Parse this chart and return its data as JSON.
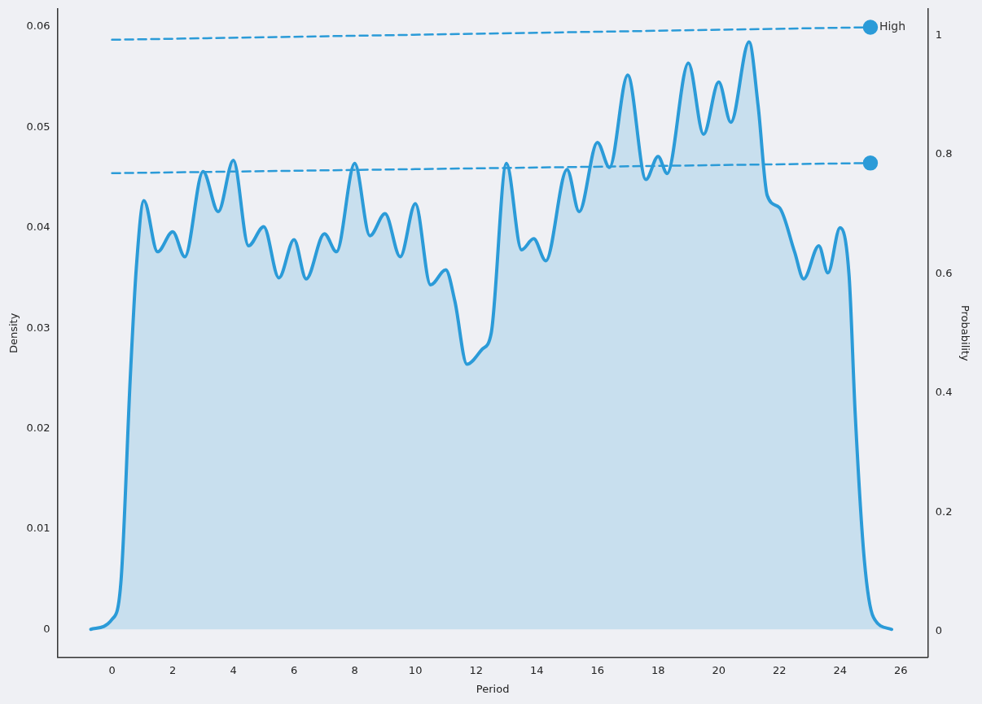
{
  "chart_data": {
    "type": "area",
    "xlabel": "Period",
    "ylabel": "Density",
    "y2label": "Probability",
    "xlim": [
      -1.8,
      26.9
    ],
    "xticks": [
      0,
      2,
      4,
      6,
      8,
      10,
      12,
      14,
      16,
      18,
      20,
      22,
      24,
      26
    ],
    "ylim": [
      -0.0028,
      0.0618
    ],
    "yticks": [
      0,
      0.01,
      0.02,
      0.03,
      0.04,
      0.05,
      0.06
    ],
    "y2lim": [
      -0.044,
      1.045
    ],
    "y2ticks": [
      0,
      0.2,
      0.4,
      0.6,
      0.8,
      1
    ],
    "grid": false,
    "legend": false,
    "series": [
      {
        "color": "#2b9bd8",
        "marker": "none",
        "line_style": "solid",
        "x": [
          -0.7,
          0,
          0.3,
          0.6,
          0.8,
          1.05,
          1.5,
          2,
          2.4,
          3,
          3.5,
          4,
          4.5,
          5,
          5.5,
          6,
          6.4,
          7,
          7.4,
          8,
          8.5,
          9,
          9.5,
          10,
          10.5,
          11,
          11.3,
          11.7,
          12.2,
          12.5,
          13,
          13.5,
          13.9,
          14.3,
          15,
          15.4,
          16,
          16.4,
          17,
          17.6,
          18,
          18.3,
          19,
          19.5,
          20,
          20.4,
          21,
          21.3,
          21.6,
          22,
          22.5,
          22.8,
          23.3,
          23.6,
          24,
          24.3,
          24.5,
          24.8,
          25.1,
          25.7
        ],
        "values": [
          0,
          0.001,
          0.005,
          0.025,
          0.036,
          0.0427,
          0.0376,
          0.0396,
          0.0371,
          0.0456,
          0.0416,
          0.0467,
          0.0382,
          0.0401,
          0.035,
          0.0388,
          0.0349,
          0.0394,
          0.0376,
          0.0464,
          0.0392,
          0.0414,
          0.0371,
          0.0424,
          0.0343,
          0.0358,
          0.0327,
          0.0264,
          0.0279,
          0.0295,
          0.0464,
          0.0378,
          0.0389,
          0.0367,
          0.0458,
          0.0416,
          0.0485,
          0.046,
          0.0552,
          0.0448,
          0.0471,
          0.0454,
          0.0564,
          0.0493,
          0.0545,
          0.0505,
          0.0585,
          0.0521,
          0.0432,
          0.042,
          0.0376,
          0.0349,
          0.0382,
          0.0355,
          0.04,
          0.0351,
          0.0214,
          0.0069,
          0.0012,
          0
        ]
      },
      {
        "type": "line",
        "axis": "y2",
        "name": "High",
        "color": "#2b9bd8",
        "marker": "circle",
        "line_style": "dashed",
        "x": [
          0,
          25
        ],
        "values": [
          0.993,
          1.014
        ]
      },
      {
        "type": "line",
        "axis": "y2",
        "color": "#2b9bd8",
        "marker": "circle",
        "line_style": "dashed",
        "x": [
          0,
          25
        ],
        "values": [
          0.769,
          0.786
        ]
      }
    ]
  }
}
